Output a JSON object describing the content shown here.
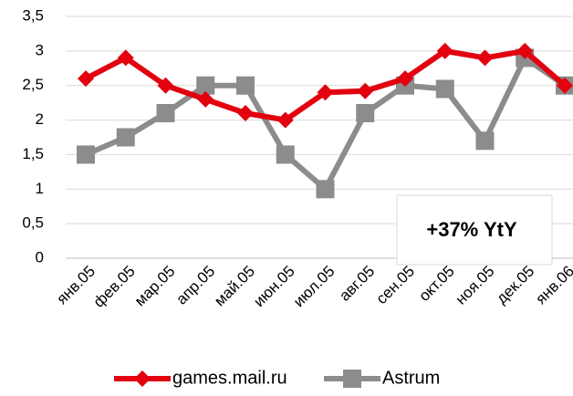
{
  "chart_data": {
    "type": "line",
    "categories": [
      "янв.05",
      "фев.05",
      "мар.05",
      "апр.05",
      "май.05",
      "июн.05",
      "июл.05",
      "авг.05",
      "сен.05",
      "окт.05",
      "ноя.05",
      "дек.05",
      "янв.06"
    ],
    "series": [
      {
        "name": "games.mail.ru",
        "color": "#e3000f",
        "marker": "diamond",
        "values": [
          2.6,
          2.9,
          2.5,
          2.3,
          2.1,
          2.0,
          2.4,
          2.42,
          2.6,
          3.0,
          2.9,
          3.0,
          2.5
        ]
      },
      {
        "name": "Astrum",
        "color": "#8c8c8c",
        "marker": "square",
        "values": [
          1.5,
          1.75,
          2.1,
          2.5,
          2.5,
          1.5,
          1.0,
          2.1,
          2.5,
          2.45,
          1.7,
          2.9,
          2.5
        ]
      }
    ],
    "ylim": [
      0,
      3.5
    ],
    "yticks": [
      0,
      {
        "value": 0.5,
        "label": "0,5"
      },
      1,
      {
        "value": 1.5,
        "label": "1,5"
      },
      2,
      {
        "value": 2.5,
        "label": "2,5"
      },
      3,
      {
        "value": 3.5,
        "label": "3,5"
      }
    ],
    "grid": true,
    "legend": "bottom",
    "annotation": "+37% YtY"
  }
}
